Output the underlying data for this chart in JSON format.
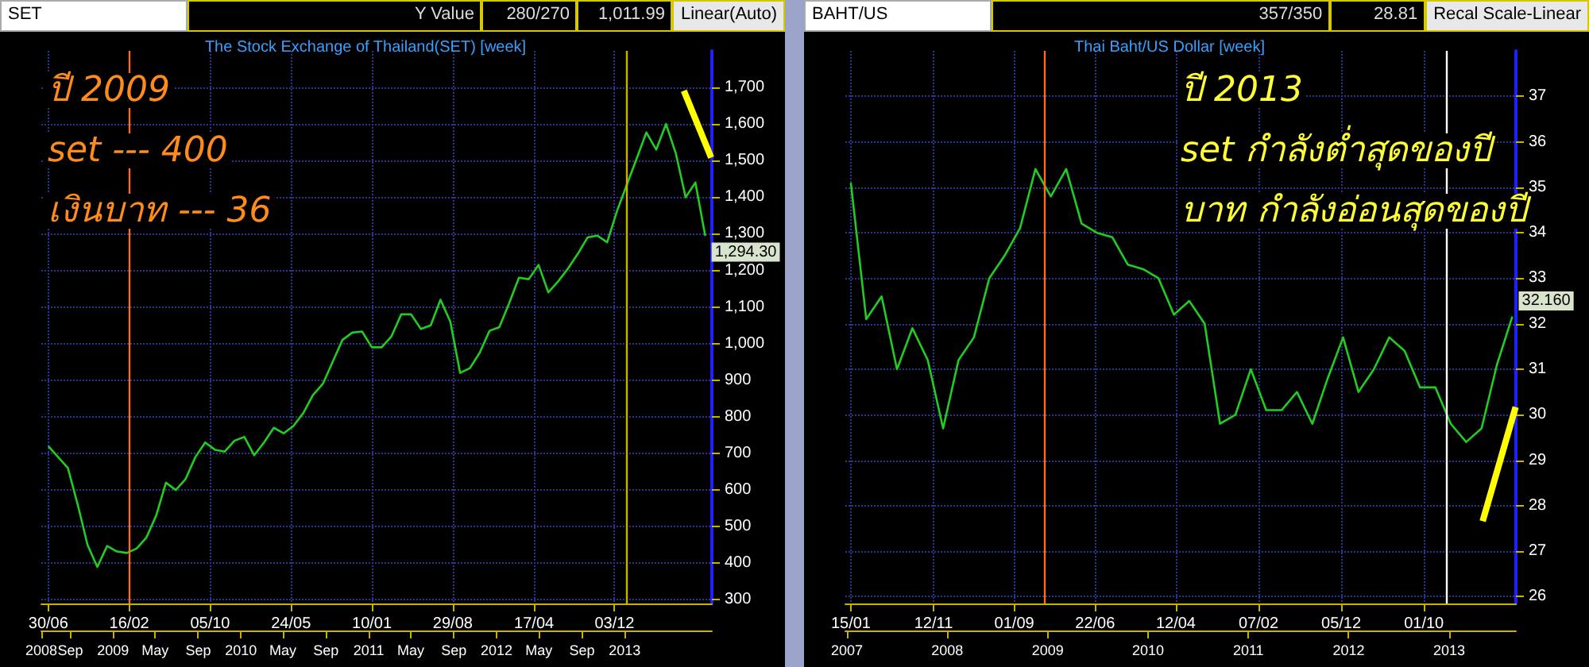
{
  "chart_data": [
    {
      "type": "line",
      "title": "The Stock Exchange of Thailand(SET) [week]",
      "annotations": [
        "SET",
        "Y Value",
        "280/270",
        "1,011.99",
        "Linear(Auto)",
        "ปี 2009",
        "set --- 400",
        "เงินบาท --- 36"
      ],
      "x": [
        "2008-06-30",
        "2008-07-28",
        "2008-08-25",
        "2008-09-22",
        "2008-10-20",
        "2008-11-17",
        "2008-12-15",
        "2009-01-12",
        "2009-02-09",
        "2009-03-09",
        "2009-04-06",
        "2009-05-04",
        "2009-06-01",
        "2009-06-29",
        "2009-07-27",
        "2009-08-24",
        "2009-09-21",
        "2009-10-19",
        "2009-11-16",
        "2009-12-14",
        "2010-01-11",
        "2010-02-08",
        "2010-03-08",
        "2010-04-05",
        "2010-05-03",
        "2010-05-31",
        "2010-06-28",
        "2010-07-26",
        "2010-08-23",
        "2010-09-20",
        "2010-10-18",
        "2010-11-15",
        "2010-12-13",
        "2011-01-10",
        "2011-02-07",
        "2011-03-07",
        "2011-04-04",
        "2011-05-02",
        "2011-05-30",
        "2011-06-27",
        "2011-07-25",
        "2011-08-22",
        "2011-09-19",
        "2011-10-17",
        "2011-11-14",
        "2011-12-12",
        "2012-01-09",
        "2012-02-06",
        "2012-03-05",
        "2012-04-02",
        "2012-04-30",
        "2012-05-28",
        "2012-06-25",
        "2012-07-23",
        "2012-08-20",
        "2012-09-17",
        "2012-10-15",
        "2012-11-12",
        "2012-12-10",
        "2013-01-07",
        "2013-02-04",
        "2013-03-04",
        "2013-04-01",
        "2013-04-29",
        "2013-05-27",
        "2013-06-24",
        "2013-07-22",
        "2013-08-19"
      ],
      "series": [
        {
          "color": "#22cc22",
          "values": [
            720,
            690,
            660,
            560,
            450,
            390,
            447,
            432,
            428,
            440,
            470,
            530,
            620,
            600,
            630,
            690,
            730,
            710,
            705,
            735,
            745,
            695,
            730,
            770,
            755,
            775,
            810,
            860,
            890,
            950,
            1010,
            1030,
            1033,
            990,
            990,
            1020,
            1080,
            1080,
            1040,
            1050,
            1120,
            1060,
            920,
            933,
            975,
            1035,
            1045,
            1110,
            1180,
            1176,
            1215,
            1140,
            1170,
            1205,
            1245,
            1290,
            1295,
            1277,
            1362,
            1434,
            1505,
            1577,
            1530,
            1600,
            1520,
            1400,
            1440,
            1294.3
          ],
          "value_labels": [
            null,
            null,
            null,
            null,
            null,
            null,
            null,
            null,
            null,
            null,
            null,
            null,
            null,
            null,
            null,
            null,
            null,
            null,
            null,
            null,
            null,
            null,
            null,
            null,
            null,
            null,
            null,
            null,
            null,
            null,
            null,
            null,
            null,
            null,
            null,
            null,
            null,
            null,
            null,
            null,
            null,
            null,
            null,
            null,
            null,
            null,
            null,
            null,
            null,
            null,
            null,
            null,
            null,
            null,
            null,
            null,
            null,
            null,
            null,
            null,
            null,
            null,
            null,
            null,
            null,
            null,
            null,
            "1,294.30"
          ]
        },
        {
          "color": "#ffff00",
          "x": [
            "2013-06-19",
            "2013-09-05"
          ],
          "values": [
            1691,
            1508
          ]
        }
      ],
      "xlim": [
        "2008-06-10",
        "2013-09-07"
      ],
      "xticks": [
        {
          "value": "2008-06-30",
          "label": "30/06"
        },
        {
          "value": "2009-02-16",
          "label": "16/02"
        },
        {
          "value": "2009-10-05",
          "label": "05/10"
        },
        {
          "value": "2010-05-24",
          "label": "24/05"
        },
        {
          "value": "2011-01-10",
          "label": "10/01"
        },
        {
          "value": "2011-08-29",
          "label": "29/08"
        },
        {
          "value": "2012-04-17",
          "label": "17/04"
        },
        {
          "value": "2012-12-03",
          "label": "03/12"
        }
      ],
      "x2lim": [
        "2008-06-10",
        "2013-09-07"
      ],
      "x2ticks": [
        {
          "value": "2008-06-10",
          "label": "2008"
        },
        {
          "value": "2008-09-01",
          "label": "Sep"
        },
        {
          "value": "2009-01-01",
          "label": "2009"
        },
        {
          "value": "2009-05-01",
          "label": "May"
        },
        {
          "value": "2009-09-01",
          "label": "Sep"
        },
        {
          "value": "2010-01-01",
          "label": "2010"
        },
        {
          "value": "2010-05-01",
          "label": "May"
        },
        {
          "value": "2010-09-01",
          "label": "Sep"
        },
        {
          "value": "2011-01-01",
          "label": "2011"
        },
        {
          "value": "2011-05-01",
          "label": "May"
        },
        {
          "value": "2011-09-01",
          "label": "Sep"
        },
        {
          "value": "2012-01-01",
          "label": "2012"
        },
        {
          "value": "2012-05-01",
          "label": "May"
        },
        {
          "value": "2012-09-01",
          "label": "Sep"
        },
        {
          "value": "2013-01-01",
          "label": "2013"
        }
      ],
      "ylim": [
        290,
        1800
      ],
      "yticks": [
        300,
        400,
        500,
        600,
        700,
        800,
        900,
        {
          "value": 1000,
          "label": "1,000"
        },
        {
          "value": 1100,
          "label": "1,100"
        },
        {
          "value": 1200,
          "label": "1,200"
        },
        {
          "value": 1300,
          "label": "1,300"
        },
        {
          "value": 1400,
          "label": "1,400"
        },
        {
          "value": 1500,
          "label": "1,500"
        },
        {
          "value": 1600,
          "label": "1,600"
        },
        {
          "value": 1700,
          "label": "1,700"
        }
      ],
      "ref_lines": [
        {
          "axis": "x",
          "value": "2009-02-16",
          "color": "#ff6a1a"
        },
        {
          "axis": "x",
          "value": "2013-01-05",
          "color": "#c8b400"
        }
      ],
      "grid": true,
      "marker": "none"
    },
    {
      "type": "line",
      "title": "Thai Baht/US Dollar [week]",
      "annotations": [
        "BAHT/US",
        "357/350",
        "28.81",
        "Recal Scale-Linear",
        "ปี 2013",
        "set กำลังต่ำสุดของปี",
        "บาท กำลังอ่อนสุดของปี"
      ],
      "x": [
        "2007-01-15",
        "2007-03-12",
        "2007-05-07",
        "2007-07-02",
        "2007-08-27",
        "2007-10-22",
        "2007-12-17",
        "2008-02-11",
        "2008-04-07",
        "2008-06-02",
        "2008-07-28",
        "2008-09-22",
        "2008-11-17",
        "2009-01-12",
        "2009-03-09",
        "2009-05-04",
        "2009-06-29",
        "2009-08-24",
        "2009-10-19",
        "2009-12-14",
        "2010-02-08",
        "2010-04-05",
        "2010-05-31",
        "2010-07-26",
        "2010-09-20",
        "2010-11-15",
        "2011-01-10",
        "2011-03-07",
        "2011-05-02",
        "2011-06-27",
        "2011-08-22",
        "2011-10-17",
        "2011-12-12",
        "2012-02-06",
        "2012-04-02",
        "2012-05-28",
        "2012-07-23",
        "2012-09-17",
        "2012-11-12",
        "2013-01-07",
        "2013-03-04",
        "2013-04-29",
        "2013-06-24",
        "2013-08-19"
      ],
      "series": [
        {
          "color": "#22cc22",
          "values": [
            35.1,
            32.1,
            32.6,
            31.0,
            31.9,
            31.2,
            29.7,
            31.2,
            31.7,
            33.0,
            33.5,
            34.1,
            35.4,
            34.8,
            35.4,
            34.2,
            34.0,
            33.9,
            33.3,
            33.2,
            33.0,
            32.2,
            32.5,
            32.0,
            29.8,
            30.0,
            31.0,
            30.1,
            30.1,
            30.5,
            29.8,
            30.8,
            31.7,
            30.5,
            31.0,
            31.7,
            31.4,
            30.6,
            30.6,
            29.8,
            29.4,
            29.7,
            31.1,
            32.16
          ],
          "value_labels": [
            null,
            null,
            null,
            null,
            null,
            null,
            null,
            null,
            null,
            null,
            null,
            null,
            null,
            null,
            null,
            null,
            null,
            null,
            null,
            null,
            null,
            null,
            null,
            null,
            null,
            null,
            null,
            null,
            null,
            null,
            null,
            null,
            null,
            null,
            null,
            null,
            null,
            null,
            null,
            null,
            null,
            null,
            null,
            "32.160"
          ]
        },
        {
          "color": "#ffff00",
          "x": [
            "2013-05-03",
            "2013-08-31"
          ],
          "values": [
            27.66,
            30.17
          ]
        }
      ],
      "xlim": [
        "2006-12-26",
        "2013-09-01"
      ],
      "xticks": [
        {
          "value": "2007-01-15",
          "label": "15/01"
        },
        {
          "value": "2007-11-12",
          "label": "12/11"
        },
        {
          "value": "2008-09-01",
          "label": "01/09"
        },
        {
          "value": "2009-06-22",
          "label": "22/06"
        },
        {
          "value": "2010-04-12",
          "label": "12/04"
        },
        {
          "value": "2011-02-07",
          "label": "07/02"
        },
        {
          "value": "2011-12-05",
          "label": "05/12"
        },
        {
          "value": "2012-10-01",
          "label": "01/10"
        }
      ],
      "x2lim": [
        "2006-12-26",
        "2013-09-01"
      ],
      "x2ticks": [
        {
          "value": "2007-01-01",
          "label": "2007"
        },
        {
          "value": "2008-01-01",
          "label": "2008"
        },
        {
          "value": "2009-01-01",
          "label": "2009"
        },
        {
          "value": "2010-01-01",
          "label": "2010"
        },
        {
          "value": "2011-01-01",
          "label": "2011"
        },
        {
          "value": "2012-01-01",
          "label": "2012"
        },
        {
          "value": "2013-01-01",
          "label": "2013"
        }
      ],
      "ylim": [
        25.85,
        38
      ],
      "yticks": [
        26,
        27,
        28,
        29,
        30,
        31,
        32,
        33,
        34,
        35,
        36,
        37
      ],
      "ref_lines": [
        {
          "axis": "x",
          "value": "2008-12-22",
          "color": "#ff6a1a"
        },
        {
          "axis": "x",
          "value": "2012-12-21",
          "color": "#ffffff"
        }
      ],
      "grid": true,
      "marker": "none"
    }
  ]
}
